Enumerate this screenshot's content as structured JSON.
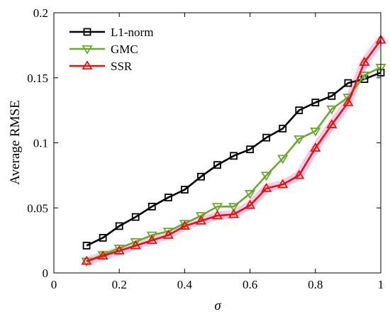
{
  "chart_data": {
    "type": "line",
    "xlabel": "σ",
    "ylabel": "Average RMSE",
    "xlim": [
      0,
      1
    ],
    "ylim": [
      0,
      0.2
    ],
    "xticks": [
      "0",
      "0.2",
      "0.4",
      "0.6",
      "0.8",
      "1"
    ],
    "yticks": [
      "0",
      "0.05",
      "0.1",
      "0.15",
      "0.2"
    ],
    "grid": false,
    "legend_position": "top-left",
    "x": [
      0.1,
      0.15,
      0.2,
      0.25,
      0.3,
      0.35,
      0.4,
      0.45,
      0.5,
      0.55,
      0.6,
      0.65,
      0.7,
      0.75,
      0.8,
      0.85,
      0.9,
      0.95,
      1.0
    ],
    "series": [
      {
        "name": "L1-norm",
        "color": "#000000",
        "marker": "square",
        "values": [
          0.021,
          0.027,
          0.036,
          0.043,
          0.051,
          0.058,
          0.064,
          0.074,
          0.083,
          0.09,
          0.095,
          0.104,
          0.111,
          0.125,
          0.131,
          0.136,
          0.146,
          0.149,
          0.154
        ]
      },
      {
        "name": "GMC",
        "color": "#6aa832",
        "marker": "triangle-down",
        "values": [
          0.009,
          0.014,
          0.019,
          0.024,
          0.029,
          0.032,
          0.038,
          0.044,
          0.051,
          0.051,
          0.061,
          0.075,
          0.088,
          0.103,
          0.109,
          0.126,
          0.135,
          0.152,
          0.158
        ]
      },
      {
        "name": "SSR",
        "color": "#e3120b",
        "marker": "triangle-up",
        "values": [
          0.009,
          0.013,
          0.017,
          0.021,
          0.025,
          0.029,
          0.036,
          0.04,
          0.044,
          0.045,
          0.052,
          0.065,
          0.068,
          0.075,
          0.096,
          0.114,
          0.131,
          0.162,
          0.179
        ]
      }
    ]
  }
}
